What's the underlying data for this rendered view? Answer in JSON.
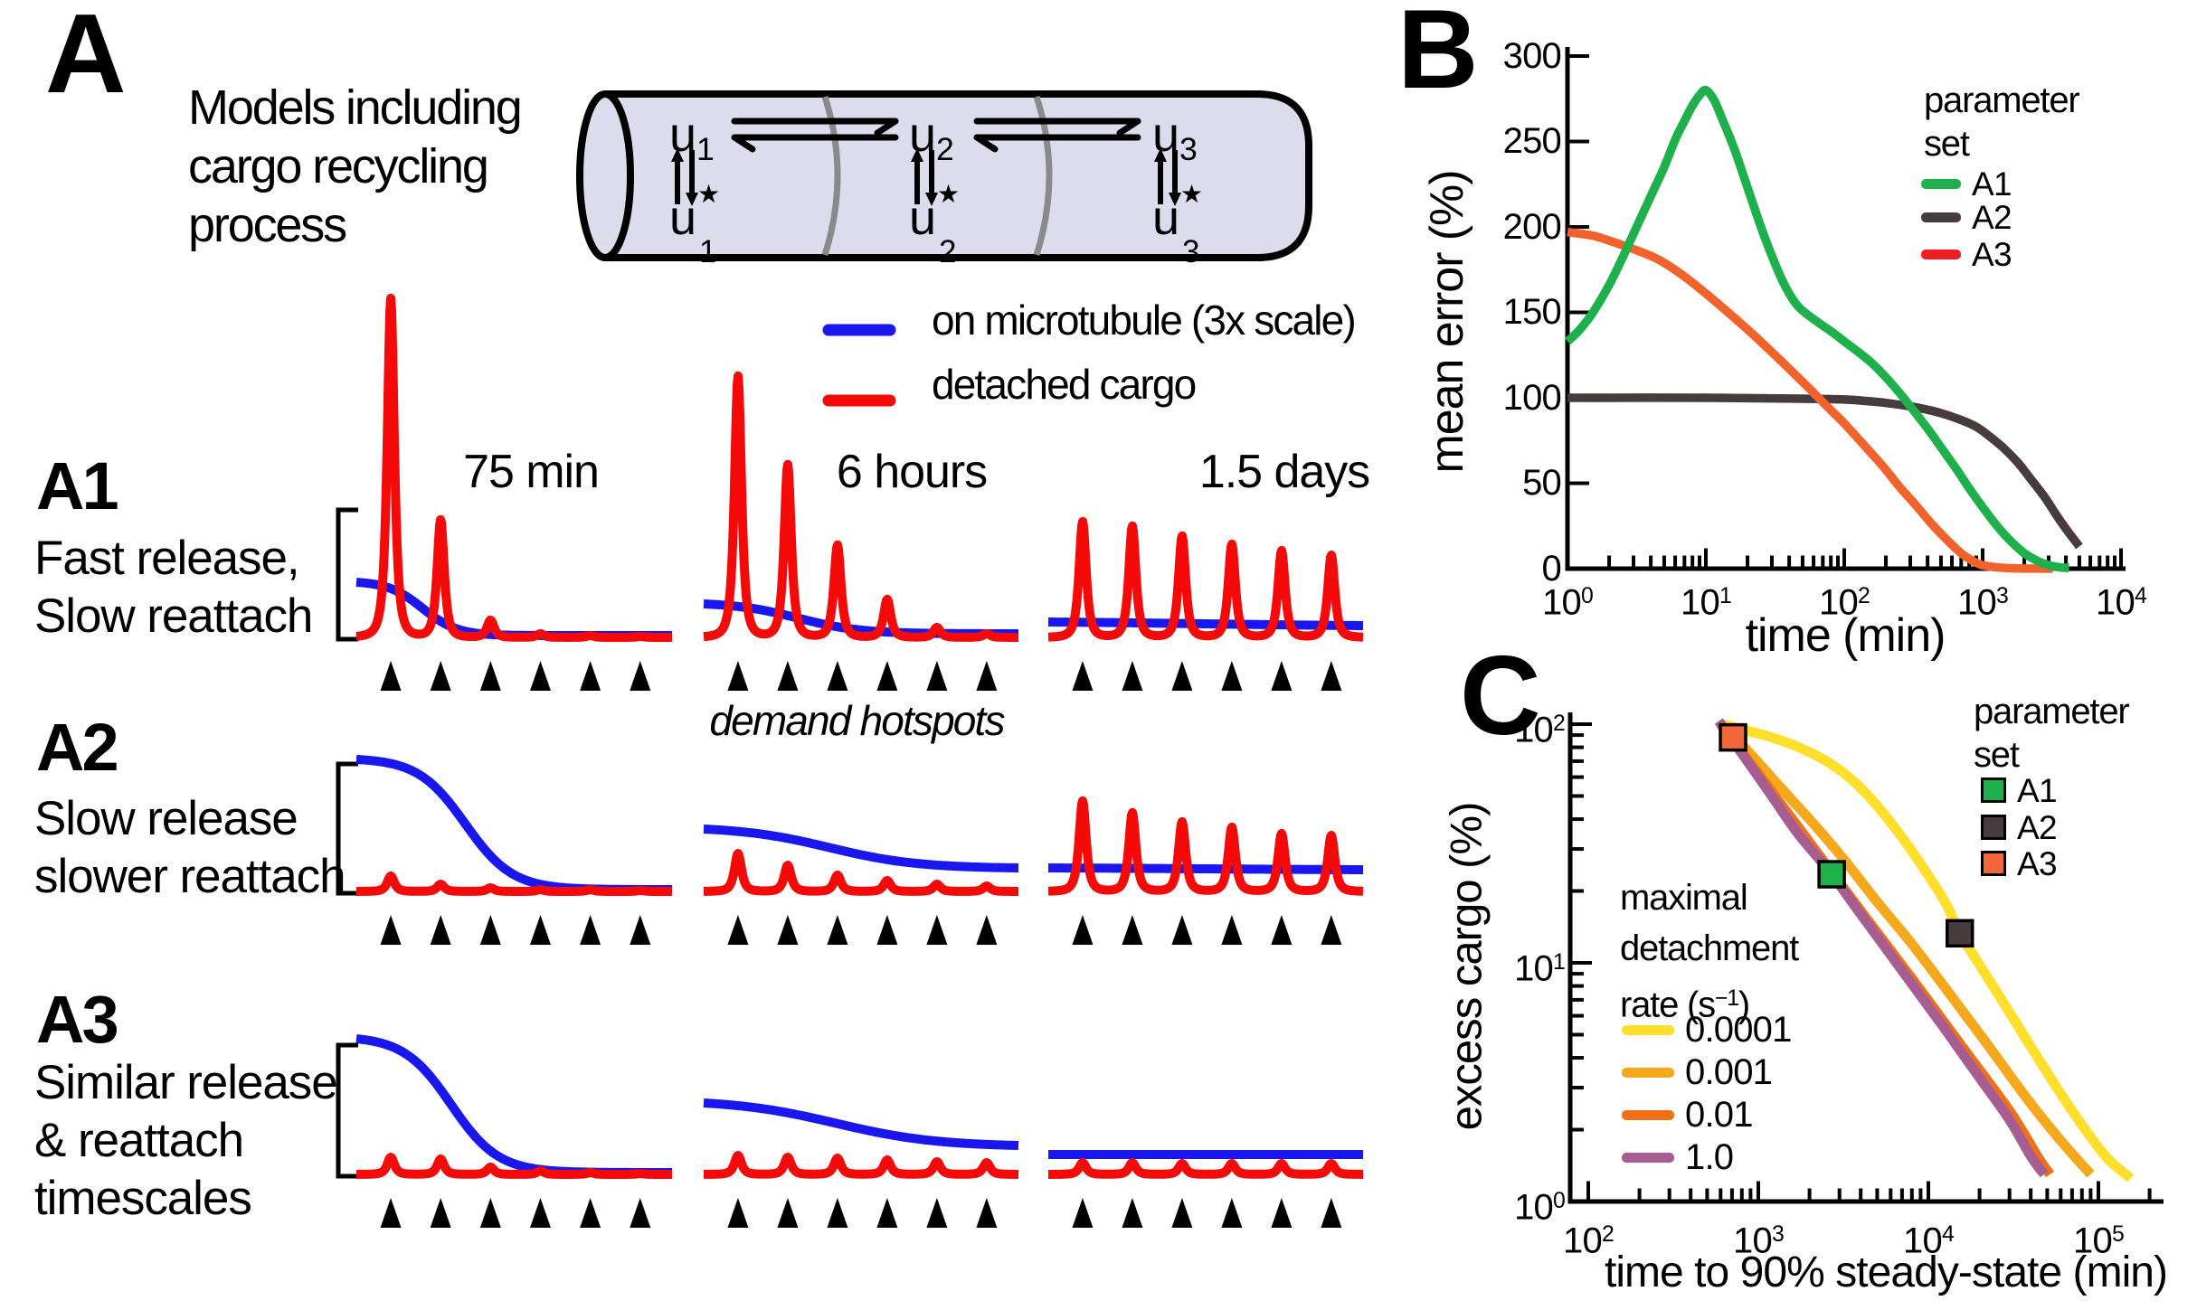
{
  "figure": {
    "background": "#ffffff",
    "colors": {
      "microtubule_blue": "#1a17ee",
      "detached_red": "#f50a0a",
      "a1_green": "#1db04b",
      "a2_dark": "#483b3d",
      "a3_legend_red": "#ee1c23",
      "a3_curve_orange": "#f2622b",
      "a3_square_orange": "#f2683c",
      "rate_0001_yellow": "#ffdf2b",
      "rate_001_amber": "#f6a81c",
      "rate_01_orange": "#f07018",
      "rate_1_purple": "#a85d92",
      "cylinder_fill": "#dcdcec",
      "cylinder_divider": "#8a8a8a"
    }
  },
  "panelA": {
    "label": "A",
    "title_lines": [
      "Models including",
      "cargo recycling",
      "process"
    ],
    "cylinder": {
      "u_symbol": "u",
      "star_symbol": "★",
      "compartment_indexes": [
        "1",
        "2",
        "3"
      ]
    },
    "legend": {
      "items": [
        {
          "label": "on microtubule (3x scale)",
          "color": "#1a17ee"
        },
        {
          "label": "detached cargo",
          "color": "#f50a0a"
        }
      ]
    },
    "time_labels": [
      "75 min",
      "6 hours",
      "1.5 days"
    ],
    "rows": [
      {
        "id": "A1",
        "desc_lines": [
          "Fast release,",
          "Slow reattach"
        ]
      },
      {
        "id": "A2",
        "desc_lines": [
          "Slow release",
          "slower reattach"
        ]
      },
      {
        "id": "A3",
        "desc_lines": [
          "Similar release",
          "& reattach",
          "timescales"
        ]
      }
    ],
    "hotspot_label": "demand hotspots"
  },
  "panelB": {
    "label": "B",
    "xlabel": "time (min)",
    "ylabel": "mean error (%)",
    "legend_title_lines": [
      "parameter",
      "set"
    ]
  },
  "panelC": {
    "label": "C",
    "xlabel": "time to 90% steady-state (min)",
    "ylabel": "excess cargo (%)",
    "legend_title_lines": [
      "parameter",
      "set"
    ],
    "rate_legend": {
      "title_lines": [
        "maximal",
        "detachment"
      ],
      "title_line3": {
        "pre": "rate (s",
        "sup": "−1",
        "post": ")"
      },
      "items": [
        {
          "label": "0.0001",
          "color": "#ffdf2b"
        },
        {
          "label": "0.001",
          "color": "#f6a81c"
        },
        {
          "label": "0.01",
          "color": "#f07018"
        },
        {
          "label": "1.0",
          "color": "#a85d92"
        }
      ]
    }
  },
  "chart_data": [
    {
      "id": "A_schematic",
      "type": "line",
      "title": "Models including cargo recycling process",
      "columns": [
        "75 min",
        "6 hours",
        "1.5 days"
      ],
      "rows": [
        "A1 Fast release, Slow reattach",
        "A2 Slow release slower reattach",
        "A3 Similar release & reattach timescales"
      ],
      "legend": [
        "on microtubule (3x scale)",
        "detached cargo"
      ],
      "hotspot_fractions": [
        0.109,
        0.267,
        0.425,
        0.583,
        0.741,
        0.899
      ],
      "red_peak_heights": {
        "A1": [
          [
            375,
            130,
            19,
            4,
            2,
            1
          ],
          [
            289,
            191,
            102,
            42,
            11,
            4
          ],
          [
            128,
            123,
            112,
            103,
            96,
            91
          ]
        ],
        "A2": [
          [
            17,
            8,
            4,
            2,
            2,
            1
          ],
          [
            42,
            29,
            18,
            12,
            8,
            6
          ],
          [
            100,
            87,
            77,
            71,
            64,
            62
          ]
        ],
        "A3": [
          [
            19,
            17,
            8,
            4,
            2,
            1
          ],
          [
            21,
            19,
            18,
            16,
            14,
            13
          ],
          [
            13,
            13,
            12,
            12,
            12,
            12
          ]
        ]
      },
      "blue_curves": {
        "A1": [
          {
            "start": 61,
            "end": 2,
            "center": 0.21,
            "width": 0.055
          },
          {
            "start": 37,
            "end": 4,
            "center": 0.3,
            "width": 0.1
          },
          {
            "start": 17,
            "end": 13,
            "center": 0.5,
            "width": 0.3
          }
        ],
        "A2": [
          {
            "start": 146,
            "end": 2,
            "center": 0.345,
            "width": 0.075
          },
          {
            "start": 69,
            "end": 26,
            "center": 0.4,
            "width": 0.14
          },
          {
            "start": 26,
            "end": 24,
            "center": 0.5,
            "width": 0.3
          }
        ],
        "A3": [
          {
            "start": 150,
            "end": 2,
            "center": 0.3,
            "width": 0.075
          },
          {
            "start": 79,
            "end": 32,
            "center": 0.42,
            "width": 0.16
          },
          {
            "start": 22,
            "end": 22,
            "center": 0.5,
            "width": 0.3
          }
        ]
      }
    },
    {
      "id": "B",
      "type": "line",
      "xlabel": "time (min)",
      "ylabel": "mean error (%)",
      "xscale": "log",
      "xlim": [
        1,
        10000
      ],
      "ylim": [
        0,
        300
      ],
      "y_ticks": [
        {
          "v": 0,
          "label": "0"
        },
        {
          "v": 50,
          "label": "50"
        },
        {
          "v": 100,
          "label": "100"
        },
        {
          "v": 150,
          "label": "150"
        },
        {
          "v": 200,
          "label": "200"
        },
        {
          "v": 250,
          "label": "250"
        },
        {
          "v": 300,
          "label": "300"
        }
      ],
      "x_tick_base": "10",
      "x_tick_exponents": [
        0,
        1,
        2,
        3,
        4
      ],
      "legend_title_lines": [
        "parameter",
        "set"
      ],
      "series": [
        {
          "name": "A1",
          "color": "#1db04b",
          "legend_color": "#1db04b",
          "points": [
            [
              1,
              133
            ],
            [
              1.2,
              139
            ],
            [
              1.5,
              149
            ],
            [
              2,
              166
            ],
            [
              2.5,
              182
            ],
            [
              3,
              196
            ],
            [
              4,
              218
            ],
            [
              5,
              235
            ],
            [
              6,
              251
            ],
            [
              7,
              262
            ],
            [
              8,
              271
            ],
            [
              9,
              277
            ],
            [
              10,
              280
            ],
            [
              11.5,
              274
            ],
            [
              13,
              264
            ],
            [
              16,
              246
            ],
            [
              20,
              223
            ],
            [
              25,
              200
            ],
            [
              30,
              183
            ],
            [
              36,
              168
            ],
            [
              43,
              157
            ],
            [
              50,
              151
            ],
            [
              65,
              144
            ],
            [
              80,
              139
            ],
            [
              100,
              133
            ],
            [
              130,
              126
            ],
            [
              160,
              120
            ],
            [
              200,
              112
            ],
            [
              250,
              103
            ],
            [
              300,
              95
            ],
            [
              400,
              82
            ],
            [
              500,
              71
            ],
            [
              650,
              58
            ],
            [
              800,
              47
            ],
            [
              1000,
              36
            ],
            [
              1300,
              24
            ],
            [
              1600,
              16
            ],
            [
              2000,
              9
            ],
            [
              2500,
              4.5
            ],
            [
              3000,
              2
            ],
            [
              3600,
              0.8
            ],
            [
              4200,
              0.4
            ]
          ]
        },
        {
          "name": "A2",
          "color": "#483b3d",
          "legend_color": "#483b3d",
          "points": [
            [
              1,
              100
            ],
            [
              10,
              100
            ],
            [
              50,
              99.5
            ],
            [
              100,
              99
            ],
            [
              150,
              98
            ],
            [
              200,
              97
            ],
            [
              300,
              95
            ],
            [
              400,
              93
            ],
            [
              500,
              91
            ],
            [
              700,
              87
            ],
            [
              900,
              83
            ],
            [
              1100,
              78
            ],
            [
              1400,
              71
            ],
            [
              1800,
              62
            ],
            [
              2200,
              53
            ],
            [
              2800,
              42
            ],
            [
              3500,
              30
            ],
            [
              4200,
              21
            ],
            [
              5000,
              13
            ]
          ]
        },
        {
          "name": "A3",
          "color": "#f2622b",
          "legend_color": "#ee1c23",
          "points": [
            [
              1,
              197
            ],
            [
              1.5,
              195
            ],
            [
              2,
              192
            ],
            [
              3,
              187
            ],
            [
              4,
              183
            ],
            [
              5,
              179
            ],
            [
              7,
              171
            ],
            [
              10,
              161
            ],
            [
              14,
              151
            ],
            [
              20,
              140
            ],
            [
              28,
              129
            ],
            [
              40,
              117
            ],
            [
              55,
              106
            ],
            [
              75,
              95
            ],
            [
              100,
              85
            ],
            [
              140,
              72
            ],
            [
              190,
              60
            ],
            [
              250,
              48
            ],
            [
              330,
              37
            ],
            [
              430,
              26
            ],
            [
              550,
              17
            ],
            [
              700,
              9
            ],
            [
              850,
              4.5
            ],
            [
              1000,
              2
            ],
            [
              1300,
              0.7
            ],
            [
              1700,
              0.2
            ],
            [
              2500,
              0.05
            ],
            [
              3200,
              0
            ]
          ]
        }
      ]
    },
    {
      "id": "C",
      "type": "line",
      "xlabel": "time to 90% steady-state (min)",
      "ylabel": "excess cargo (%)",
      "xscale": "log",
      "yscale": "log",
      "xlim": [
        100,
        240000
      ],
      "ylim": [
        1,
        112
      ],
      "x_tick_base": "10",
      "x_tick_exponents": [
        2,
        3,
        4,
        5
      ],
      "y_tick_exponents": [
        2,
        1,
        0
      ],
      "legend_title_lines": [
        "parameter",
        "set"
      ],
      "rate_legend_title": "maximal detachment rate (s-1)",
      "lines": [
        {
          "rate": "0.0001",
          "color": "#ffdf2b",
          "points": [
            [
              620,
              100
            ],
            [
              850,
              94
            ],
            [
              1200,
              88
            ],
            [
              1800,
              79
            ],
            [
              2600,
              69
            ],
            [
              3600,
              58
            ],
            [
              4800,
              47
            ],
            [
              6500,
              36
            ],
            [
              9000,
              26
            ],
            [
              12500,
              18
            ],
            [
              15300,
              13.3
            ],
            [
              20000,
              9.8
            ],
            [
              30000,
              6.2
            ],
            [
              45000,
              3.9
            ],
            [
              70000,
              2.4
            ],
            [
              110000,
              1.55
            ],
            [
              155000,
              1.25
            ]
          ]
        },
        {
          "rate": "0.001",
          "color": "#f6a81c",
          "points": [
            [
              650,
              97
            ],
            [
              800,
              82
            ],
            [
              1000,
              69
            ],
            [
              1500,
              50
            ],
            [
              2200,
              37
            ],
            [
              3200,
              27
            ],
            [
              5000,
              18
            ],
            [
              8000,
              12
            ],
            [
              13000,
              7.6
            ],
            [
              22000,
              4.6
            ],
            [
              38000,
              2.7
            ],
            [
              60000,
              1.8
            ],
            [
              90000,
              1.3
            ]
          ]
        },
        {
          "rate": "0.01",
          "color": "#f07018",
          "points": [
            [
              600,
              100
            ],
            [
              1000,
              62
            ],
            [
              2000,
              32
            ],
            [
              4000,
              16.5
            ],
            [
              8000,
              8.6
            ],
            [
              16000,
              4.4
            ],
            [
              30000,
              2.4
            ],
            [
              45000,
              1.5
            ],
            [
              52000,
              1.3
            ]
          ]
        },
        {
          "rate": "1.0",
          "color": "#a85d92",
          "points": [
            [
              585,
              103
            ],
            [
              700,
              86
            ],
            [
              900,
              67
            ],
            [
              1200,
              50
            ],
            [
              1700,
              35
            ],
            [
              2700,
              23.5
            ],
            [
              4000,
              16
            ],
            [
              7000,
              9.3
            ],
            [
              12000,
              5.5
            ],
            [
              20000,
              3.3
            ],
            [
              30000,
              2.2
            ],
            [
              40000,
              1.55
            ],
            [
              48000,
              1.3
            ]
          ]
        }
      ],
      "markers": [
        {
          "name": "A1",
          "color": "#1db04b",
          "x": 2700,
          "y": 23.5
        },
        {
          "name": "A2",
          "color": "#483b3d",
          "x": 15300,
          "y": 13.3
        },
        {
          "name": "A3",
          "color": "#f2683c",
          "x": 710,
          "y": 88
        }
      ]
    }
  ]
}
